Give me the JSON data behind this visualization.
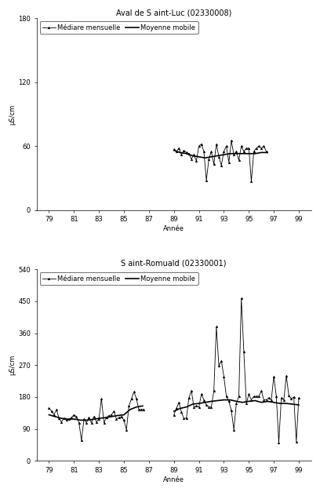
{
  "title1": "Aval de S aint-Luc (02330008)",
  "title2": "S aint-Romuald (02330001)",
  "ylabel": "μS/cm",
  "xlabel": "Année",
  "legend_median": "Médiare mensuelle",
  "legend_mobile": "Moyenne mobile",
  "plot1": {
    "ylim": [
      0,
      180
    ],
    "yticks": [
      0,
      60,
      120,
      180
    ],
    "xticks": [
      79,
      81,
      83,
      85,
      87,
      89,
      91,
      93,
      95,
      97,
      99
    ],
    "median_x": [
      89.0,
      89.2,
      89.4,
      89.6,
      89.8,
      90.0,
      90.2,
      90.4,
      90.6,
      90.8,
      91.0,
      91.2,
      91.4,
      91.6,
      91.8,
      92.0,
      92.2,
      92.4,
      92.6,
      92.8,
      93.0,
      93.2,
      93.4,
      93.6,
      93.8,
      94.0,
      94.2,
      94.4,
      94.6,
      94.8,
      95.0,
      95.2,
      95.4,
      95.6,
      95.8,
      96.0,
      96.2,
      96.4
    ],
    "median_y": [
      57,
      55,
      58,
      52,
      56,
      54,
      53,
      48,
      52,
      46,
      60,
      62,
      55,
      28,
      48,
      55,
      43,
      62,
      50,
      42,
      55,
      60,
      45,
      65,
      52,
      55,
      47,
      60,
      55,
      58,
      58,
      27,
      55,
      58,
      60,
      58,
      60,
      55
    ],
    "mobile_x": [
      89.0,
      89.5,
      90.0,
      90.5,
      91.0,
      91.5,
      92.0,
      92.5,
      93.0,
      93.5,
      94.0,
      94.5,
      95.0,
      95.5,
      96.0,
      96.5
    ],
    "mobile_y": [
      56,
      54,
      53,
      51,
      50,
      49,
      50,
      51,
      52,
      53,
      53,
      53,
      53,
      53,
      54,
      54
    ]
  },
  "plot2": {
    "ylim": [
      0,
      540
    ],
    "yticks": [
      0,
      90,
      180,
      270,
      360,
      450,
      540
    ],
    "xticks": [
      79,
      81,
      83,
      85,
      87,
      89,
      91,
      93,
      95,
      97,
      99
    ],
    "median_x_seg1": [
      79.0,
      79.2,
      79.4,
      79.6,
      79.8,
      80.0,
      80.2,
      80.4,
      80.6,
      80.8,
      81.0,
      81.2,
      81.4,
      81.6,
      81.8,
      82.0,
      82.2,
      82.4,
      82.6,
      82.8,
      83.0,
      83.2,
      83.4,
      83.6,
      83.8,
      84.0,
      84.2,
      84.4,
      84.6,
      84.8,
      85.0,
      85.2,
      85.4,
      85.6,
      85.8,
      86.0,
      86.2,
      86.4,
      86.6
    ],
    "median_y_seg1": [
      150,
      140,
      130,
      145,
      120,
      110,
      120,
      115,
      118,
      122,
      130,
      125,
      108,
      58,
      118,
      108,
      122,
      108,
      125,
      110,
      118,
      175,
      108,
      122,
      128,
      130,
      140,
      118,
      122,
      125,
      115,
      88,
      155,
      175,
      195,
      175,
      145,
      145,
      145
    ],
    "mobile_x_seg1": [
      79.0,
      79.5,
      80.0,
      80.5,
      81.0,
      81.5,
      82.0,
      82.5,
      83.0,
      83.5,
      84.0,
      84.5,
      85.0,
      85.5,
      86.0,
      86.5
    ],
    "mobile_y_seg1": [
      130,
      125,
      120,
      118,
      118,
      115,
      115,
      117,
      120,
      122,
      125,
      128,
      130,
      145,
      152,
      155
    ],
    "median_x_seg2": [
      89.0,
      89.2,
      89.4,
      89.6,
      89.8,
      90.0,
      90.2,
      90.4,
      90.6,
      90.8,
      91.0,
      91.2,
      91.4,
      91.6,
      91.8,
      92.0,
      92.2,
      92.4,
      92.6,
      92.8,
      93.0,
      93.2,
      93.4,
      93.6,
      93.8,
      94.0,
      94.2,
      94.4,
      94.6,
      94.8,
      95.0,
      95.2,
      95.4,
      95.6,
      95.8,
      96.0,
      96.2,
      96.4,
      96.6,
      96.8,
      97.0,
      97.2,
      97.4,
      97.6,
      97.8,
      98.0,
      98.2,
      98.4,
      98.6,
      98.8,
      99.0
    ],
    "median_y_seg2": [
      130,
      148,
      165,
      138,
      120,
      120,
      178,
      198,
      152,
      155,
      152,
      188,
      172,
      158,
      152,
      152,
      198,
      378,
      268,
      282,
      238,
      182,
      168,
      142,
      88,
      162,
      182,
      458,
      308,
      162,
      188,
      172,
      182,
      182,
      182,
      198,
      172,
      172,
      178,
      172,
      238,
      182,
      52,
      178,
      172,
      240,
      185,
      175,
      180,
      55,
      178
    ],
    "mobile_x_seg2": [
      89.0,
      89.5,
      90.0,
      90.5,
      91.0,
      91.5,
      92.0,
      92.5,
      93.0,
      93.5,
      94.0,
      94.5,
      95.0,
      95.5,
      96.0,
      96.5,
      97.0,
      97.5,
      98.0,
      98.5,
      99.0
    ],
    "mobile_y_seg2": [
      140,
      148,
      152,
      160,
      162,
      165,
      168,
      170,
      172,
      172,
      168,
      165,
      168,
      170,
      165,
      168,
      165,
      162,
      162,
      160,
      158
    ]
  }
}
